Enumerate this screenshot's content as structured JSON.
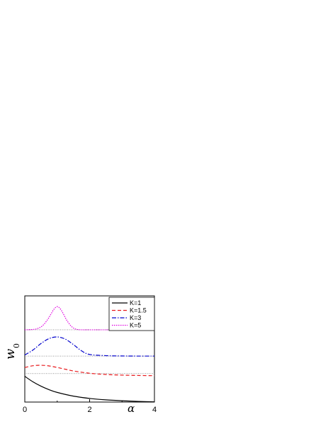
{
  "chart_data": {
    "type": "line",
    "xlabel": "α",
    "ylabel": "w",
    "ylabel_sub": "0",
    "xlim": [
      0,
      4
    ],
    "x_ticks": [
      "0",
      "2",
      "4"
    ],
    "legend_placement": "top-right",
    "series": [
      {
        "name": "K=1",
        "color": "#000000",
        "dash": "solid",
        "baseline": 0.0,
        "x": [
          0,
          0.25,
          0.5,
          0.75,
          1.0,
          1.5,
          2.0,
          2.5,
          3.0,
          3.5,
          4.0
        ],
        "y": [
          0.235,
          0.185,
          0.145,
          0.113,
          0.088,
          0.054,
          0.033,
          0.02,
          0.012,
          0.006,
          0.002
        ]
      },
      {
        "name": "K=1.5",
        "color": "#e8191c",
        "dash": "dashed",
        "baseline": 0.26,
        "x": [
          0,
          0.25,
          0.5,
          0.75,
          1.0,
          1.25,
          1.5,
          2.0,
          2.5,
          3.0,
          3.5,
          4.0
        ],
        "y": [
          0.315,
          0.332,
          0.336,
          0.33,
          0.316,
          0.3,
          0.284,
          0.263,
          0.252,
          0.246,
          0.243,
          0.241
        ]
      },
      {
        "name": "K=3",
        "color": "#0000cc",
        "dash": "dashdot",
        "baseline": 0.42,
        "x": [
          0,
          0.25,
          0.5,
          0.75,
          1.0,
          1.25,
          1.5,
          1.75,
          2.0,
          2.5,
          3.0,
          3.5,
          4.0
        ],
        "y": [
          0.43,
          0.475,
          0.535,
          0.58,
          0.595,
          0.575,
          0.525,
          0.468,
          0.435,
          0.424,
          0.421,
          0.42,
          0.42
        ]
      },
      {
        "name": "K=5",
        "color": "#e000e0",
        "dash": "dotted",
        "baseline": 0.66,
        "x": [
          0,
          0.25,
          0.4,
          0.55,
          0.7,
          0.8,
          0.9,
          1.0,
          1.1,
          1.2,
          1.3,
          1.45,
          1.6,
          1.8,
          2.0,
          3.0,
          4.0
        ],
        "y": [
          0.66,
          0.663,
          0.672,
          0.698,
          0.752,
          0.8,
          0.848,
          0.872,
          0.85,
          0.8,
          0.745,
          0.688,
          0.664,
          0.66,
          0.66,
          0.66,
          0.66
        ]
      }
    ]
  }
}
